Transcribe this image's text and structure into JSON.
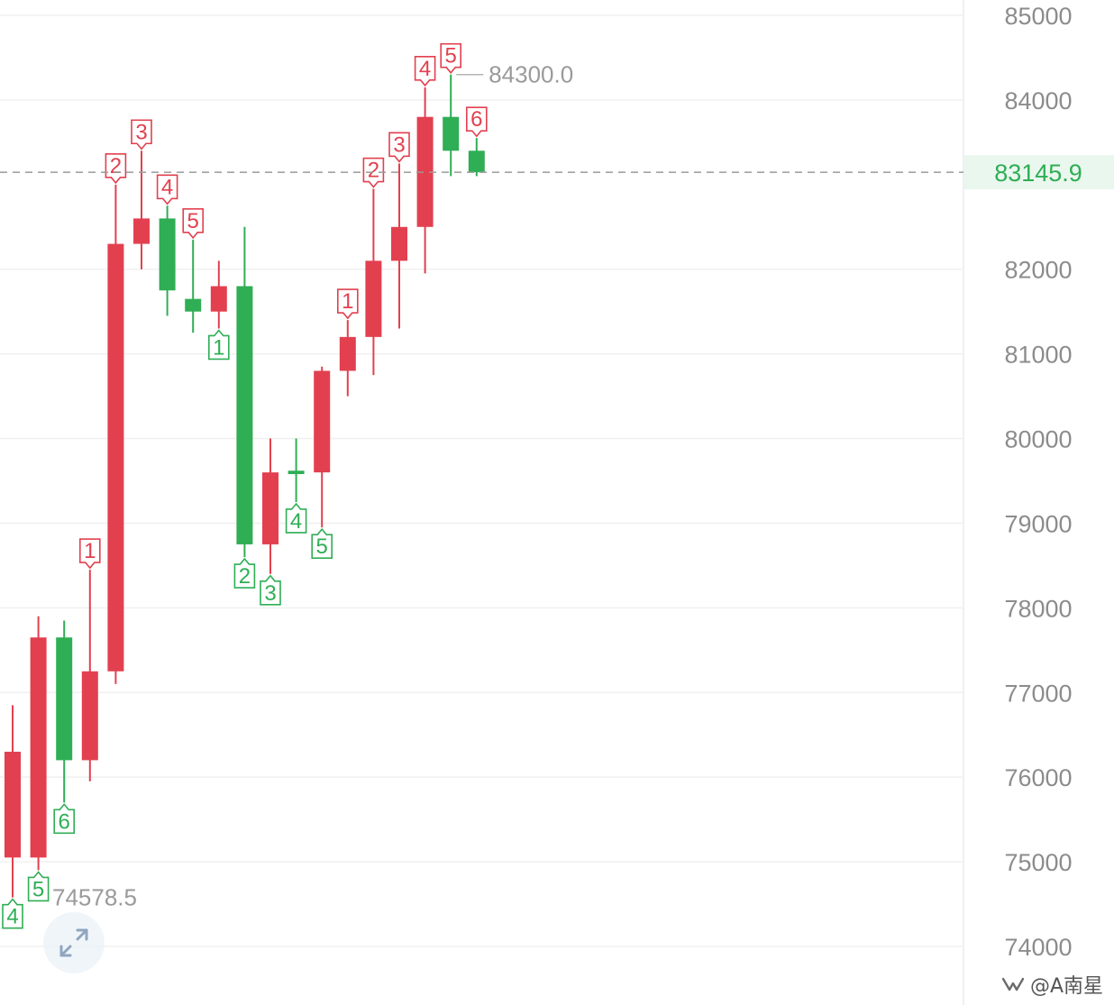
{
  "chart_data": {
    "type": "candlestick",
    "y_axis": {
      "ticks": [
        74000,
        75000,
        76000,
        77000,
        78000,
        79000,
        80000,
        81000,
        82000,
        84000,
        85000
      ],
      "range": [
        73900,
        85200
      ],
      "side": "right"
    },
    "current_price": {
      "label": "83145.9",
      "value": 83145.9
    },
    "high_annotation": {
      "label": "84300.0",
      "value": 84300.0
    },
    "low_annotation": {
      "label": "74578.5",
      "value": 74578.5
    },
    "candles": [
      {
        "open": 75050,
        "close": 76300,
        "high": 76850,
        "low": 74578.5,
        "marker": "4",
        "marker_pos": "below"
      },
      {
        "open": 75050,
        "close": 77650,
        "high": 77900,
        "low": 74900,
        "marker": "5",
        "marker_pos": "below"
      },
      {
        "open": 77650,
        "close": 76200,
        "high": 77850,
        "low": 75700,
        "marker": "6",
        "marker_pos": "below"
      },
      {
        "open": 76200,
        "close": 77250,
        "high": 78450,
        "low": 75950,
        "marker": "1",
        "marker_pos": "above"
      },
      {
        "open": 77250,
        "close": 82300,
        "high": 83000,
        "low": 77100,
        "marker": "2",
        "marker_pos": "above"
      },
      {
        "open": 82300,
        "close": 82600,
        "high": 83400,
        "low": 82000,
        "marker": "3",
        "marker_pos": "above"
      },
      {
        "open": 82600,
        "close": 81750,
        "high": 82750,
        "low": 81450,
        "marker": "4",
        "marker_pos": "above"
      },
      {
        "open": 81650,
        "close": 81500,
        "high": 82350,
        "low": 81250,
        "marker": "5",
        "marker_pos": "above"
      },
      {
        "open": 81500,
        "close": 81800,
        "high": 82100,
        "low": 81300,
        "marker": "1",
        "marker_pos": "below"
      },
      {
        "open": 81800,
        "close": 78750,
        "high": 82500,
        "low": 78600,
        "marker": "2",
        "marker_pos": "below"
      },
      {
        "open": 78750,
        "close": 79600,
        "high": 80000,
        "low": 78400,
        "marker": "3",
        "marker_pos": "below"
      },
      {
        "open": 79620,
        "close": 79580,
        "high": 80000,
        "low": 79250,
        "marker": "4",
        "marker_pos": "below"
      },
      {
        "open": 79600,
        "close": 80800,
        "high": 80850,
        "low": 78950,
        "marker": "5",
        "marker_pos": "below"
      },
      {
        "open": 80800,
        "close": 81200,
        "high": 81400,
        "low": 80500,
        "marker": "1",
        "marker_pos": "above"
      },
      {
        "open": 81200,
        "close": 82100,
        "high": 82950,
        "low": 80750,
        "marker": "2",
        "marker_pos": "above"
      },
      {
        "open": 82100,
        "close": 82500,
        "high": 83250,
        "low": 81300,
        "marker": "3",
        "marker_pos": "above"
      },
      {
        "open": 82500,
        "close": 83800,
        "high": 84150,
        "low": 81950,
        "marker": "4",
        "marker_pos": "above"
      },
      {
        "open": 83800,
        "close": 83400,
        "high": 84300,
        "low": 83100,
        "marker": "5",
        "marker_pos": "above"
      },
      {
        "open": 83400,
        "close": 83146,
        "high": 83550,
        "low": 83100,
        "marker": "6",
        "marker_pos": "above"
      }
    ],
    "colors": {
      "up": "#e2404f",
      "down": "#2fae55",
      "grid": "#f0f0f0",
      "current_line": "#9a9a9a",
      "current_tag_bg": "#eaf7ee",
      "axis_text": "#8c8c8c"
    }
  },
  "watermark": {
    "text": "@A南星",
    "icon": "wechat-channels-icon"
  },
  "fullscreen_button": {
    "icon": "expand-arrows-icon"
  }
}
